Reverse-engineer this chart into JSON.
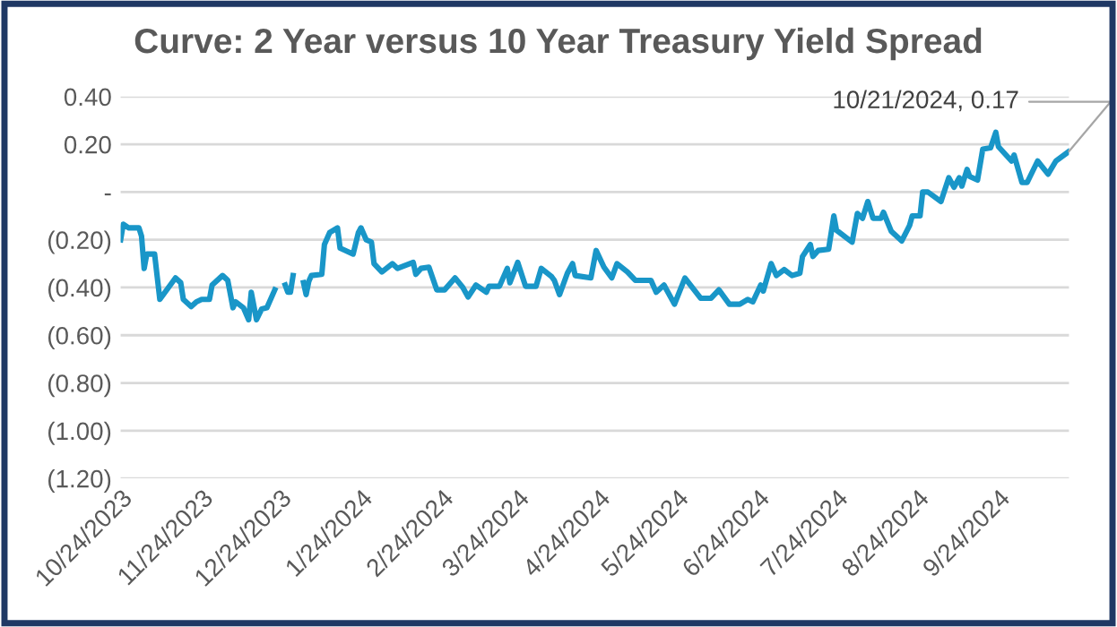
{
  "chart_data": {
    "type": "line",
    "title": "Curve: 2 Year versus 10 Year Treasury Yield Spread",
    "x": [
      "2023-10-24",
      "2023-10-25",
      "2023-10-27",
      "2023-10-31",
      "2023-11-01",
      "2023-11-02",
      "2023-11-03",
      "2023-11-06",
      "2023-11-08",
      "2023-11-10",
      "2023-11-14",
      "2023-11-16",
      "2023-11-17",
      "2023-11-20",
      "2023-11-22",
      "2023-11-24",
      "2023-11-27",
      "2023-11-28",
      "2023-12-02",
      "2023-12-04",
      "2023-12-06",
      "2023-12-07",
      "2023-12-10",
      "2023-12-12",
      "2023-12-13",
      "2023-12-15",
      "2023-12-17",
      "2023-12-19",
      "2023-12-22",
      "2023-12-24",
      "2023-12-26",
      "2023-12-27",
      "2023-12-28",
      "2023-12-29",
      "2023-12-31",
      "2024-01-02",
      "2024-01-03",
      "2024-01-04",
      "2024-01-05",
      "2024-01-09",
      "2024-01-10",
      "2024-01-12",
      "2024-01-15",
      "2024-01-16",
      "2024-01-19",
      "2024-01-21",
      "2024-01-23",
      "2024-01-24",
      "2024-01-26",
      "2024-01-28",
      "2024-01-29",
      "2024-02-01",
      "2024-02-05",
      "2024-02-07",
      "2024-02-13",
      "2024-02-14",
      "2024-02-16",
      "2024-02-19",
      "2024-02-22",
      "2024-02-25",
      "2024-02-29",
      "2024-03-03",
      "2024-03-05",
      "2024-03-08",
      "2024-03-12",
      "2024-03-13",
      "2024-03-17",
      "2024-03-20",
      "2024-03-21",
      "2024-03-24",
      "2024-03-27",
      "2024-03-31",
      "2024-04-02",
      "2024-04-06",
      "2024-04-07",
      "2024-04-09",
      "2024-04-12",
      "2024-04-14",
      "2024-04-15",
      "2024-04-21",
      "2024-04-23",
      "2024-04-26",
      "2024-04-29",
      "2024-05-01",
      "2024-05-05",
      "2024-05-08",
      "2024-05-14",
      "2024-05-16",
      "2024-05-19",
      "2024-05-23",
      "2024-05-27",
      "2024-06-02",
      "2024-06-06",
      "2024-06-09",
      "2024-06-13",
      "2024-06-17",
      "2024-06-20",
      "2024-06-22",
      "2024-06-25",
      "2024-06-26",
      "2024-06-29",
      "2024-07-01",
      "2024-07-04",
      "2024-07-07",
      "2024-07-10",
      "2024-07-11",
      "2024-07-14",
      "2024-07-15",
      "2024-07-17",
      "2024-07-21",
      "2024-07-23",
      "2024-07-24",
      "2024-07-30",
      "2024-08-01",
      "2024-08-03",
      "2024-08-05",
      "2024-08-07",
      "2024-08-10",
      "2024-08-11",
      "2024-08-14",
      "2024-08-18",
      "2024-08-21",
      "2024-08-22",
      "2024-08-25",
      "2024-08-26",
      "2024-08-28",
      "2024-09-02",
      "2024-09-05",
      "2024-09-07",
      "2024-09-09",
      "2024-09-10",
      "2024-09-12",
      "2024-09-13",
      "2024-09-16",
      "2024-09-18",
      "2024-09-21",
      "2024-09-23",
      "2024-09-24",
      "2024-09-29",
      "2024-09-30",
      "2024-10-03",
      "2024-10-05",
      "2024-10-09",
      "2024-10-13",
      "2024-10-16",
      "2024-10-21"
    ],
    "series": [
      {
        "color": "#1996c8",
        "values": [
          -0.2,
          -0.135,
          -0.15,
          -0.15,
          -0.185,
          -0.32,
          -0.26,
          -0.26,
          -0.45,
          -0.42,
          -0.36,
          -0.38,
          -0.45,
          -0.48,
          -0.46,
          -0.45,
          -0.45,
          -0.39,
          -0.35,
          -0.37,
          -0.485,
          -0.46,
          -0.485,
          -0.535,
          -0.42,
          -0.535,
          -0.49,
          -0.485,
          -0.41,
          null,
          -0.39,
          -0.42,
          -0.42,
          -0.35,
          null,
          -0.38,
          -0.43,
          -0.375,
          -0.35,
          -0.345,
          -0.22,
          -0.17,
          -0.15,
          -0.235,
          -0.25,
          -0.26,
          -0.17,
          -0.15,
          -0.2,
          -0.21,
          -0.3,
          -0.335,
          -0.3,
          -0.32,
          -0.295,
          -0.345,
          -0.32,
          -0.315,
          -0.41,
          -0.41,
          -0.36,
          -0.4,
          -0.44,
          -0.39,
          -0.42,
          -0.395,
          -0.395,
          -0.32,
          -0.38,
          -0.295,
          -0.395,
          -0.395,
          -0.32,
          -0.355,
          -0.37,
          -0.43,
          -0.34,
          -0.3,
          -0.35,
          -0.36,
          -0.245,
          -0.315,
          -0.36,
          -0.3,
          -0.335,
          -0.37,
          -0.37,
          -0.42,
          -0.39,
          -0.47,
          -0.36,
          -0.445,
          -0.445,
          -0.41,
          -0.47,
          -0.47,
          -0.45,
          -0.46,
          -0.39,
          -0.415,
          -0.3,
          -0.35,
          -0.325,
          -0.35,
          -0.34,
          -0.27,
          -0.22,
          -0.27,
          -0.245,
          -0.24,
          -0.1,
          -0.16,
          -0.21,
          -0.09,
          -0.11,
          -0.04,
          -0.11,
          -0.11,
          -0.085,
          -0.165,
          -0.205,
          -0.14,
          -0.1,
          -0.1,
          0.0,
          0.0,
          -0.04,
          0.06,
          0.02,
          0.06,
          0.025,
          0.095,
          0.065,
          0.05,
          0.18,
          0.185,
          0.25,
          0.19,
          0.13,
          0.155,
          0.04,
          0.04,
          0.13,
          0.075,
          0.13,
          0.17
        ]
      }
    ],
    "annotations": [
      {
        "text": "10/21/2024, 0.17",
        "x": "2024-10-21",
        "y": 0.17
      }
    ],
    "xlim": [
      "2023-10-24",
      "2024-10-21"
    ],
    "xticks": [
      {
        "value": "2023-10-24",
        "label": "10/24/2023"
      },
      {
        "value": "2023-11-24",
        "label": "11/24/2023"
      },
      {
        "value": "2023-12-24",
        "label": "12/24/2023"
      },
      {
        "value": "2024-01-24",
        "label": "1/24/2024"
      },
      {
        "value": "2024-02-24",
        "label": "2/24/2024"
      },
      {
        "value": "2024-03-24",
        "label": "3/24/2024"
      },
      {
        "value": "2024-04-24",
        "label": "4/24/2024"
      },
      {
        "value": "2024-05-24",
        "label": "5/24/2024"
      },
      {
        "value": "2024-06-24",
        "label": "6/24/2024"
      },
      {
        "value": "2024-07-24",
        "label": "7/24/2024"
      },
      {
        "value": "2024-08-24",
        "label": "8/24/2024"
      },
      {
        "value": "2024-09-24",
        "label": "9/24/2024"
      }
    ],
    "ylim": [
      -1.2,
      0.4
    ],
    "yticks": [
      {
        "value": -1.2,
        "label": "(1.20)"
      },
      {
        "value": -1.0,
        "label": "(1.00)"
      },
      {
        "value": -0.8,
        "label": "(0.80)"
      },
      {
        "value": -0.6,
        "label": "(0.60)"
      },
      {
        "value": -0.4,
        "label": "(0.40)"
      },
      {
        "value": -0.2,
        "label": "(0.20)"
      },
      {
        "value": 0,
        "label": "-"
      },
      {
        "value": 0.2,
        "label": "0.20"
      },
      {
        "value": 0.4,
        "label": "0.40"
      }
    ],
    "grid": "y",
    "marker": "none",
    "line_style": "solid"
  }
}
